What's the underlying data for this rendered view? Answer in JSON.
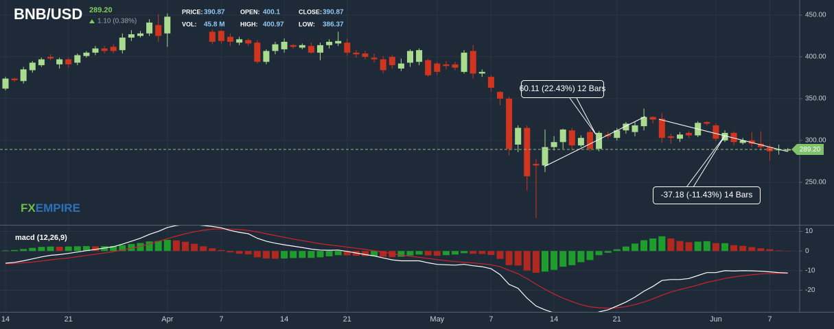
{
  "header": {
    "symbol": "BNB/USD",
    "change": "1.10 (0.38%)",
    "stats": [
      {
        "label": "PRICE:",
        "value": "390.87"
      },
      {
        "label": "VOL:",
        "value": "45.8 M"
      },
      {
        "label": "OPEN:",
        "value": "400.1"
      },
      {
        "label": "HIGH:",
        "value": "400.97"
      },
      {
        "label": "CLOSE:",
        "value": "390.87"
      },
      {
        "label": "LOW:",
        "value": "386.37"
      }
    ]
  },
  "watermark": {
    "prefix": "FX",
    "suffix": "EMPIRE"
  },
  "annotations": [
    "60.11 (22.43%) 12 Bars",
    "-37.18 (-11.43%) 14 Bars"
  ],
  "chart_data": [
    {
      "type": "candlestick",
      "categories": [
        "14",
        null,
        null,
        null,
        null,
        null,
        null,
        "21",
        null,
        null,
        null,
        null,
        null,
        null,
        null,
        null,
        null,
        null,
        "Apr",
        null,
        null,
        null,
        null,
        null,
        "7",
        null,
        null,
        null,
        null,
        null,
        null,
        "14",
        null,
        null,
        null,
        null,
        null,
        null,
        "21",
        null,
        null,
        null,
        null,
        null,
        null,
        null,
        null,
        null,
        "May",
        null,
        null,
        null,
        null,
        null,
        "7",
        null,
        null,
        null,
        null,
        null,
        null,
        "14",
        null,
        null,
        null,
        null,
        null,
        null,
        "21",
        null,
        null,
        null,
        null,
        null,
        null,
        null,
        null,
        null,
        null,
        "Jun",
        null,
        null,
        null,
        null,
        null,
        "7",
        null,
        null
      ],
      "open": [
        362,
        374,
        371,
        384,
        390,
        400,
        391,
        397,
        393,
        401,
        405,
        410,
        412,
        408,
        423,
        425,
        428,
        438,
        428,
        null,
        null,
        null,
        null,
        430,
        431,
        424,
        417,
        420,
        417,
        394,
        407,
        409,
        414,
        411,
        413,
        405,
        414,
        416,
        417,
        405,
        404,
        399,
        397,
        400,
        386,
        393,
        394,
        396,
        392,
        391,
        391,
        382,
        407,
        380,
        376,
        358,
        350,
        295,
        315,
        272,
        270,
        292,
        298,
        312,
        294,
        310,
        290,
        307,
        303,
        312,
        310,
        317,
        328,
        326,
        305,
        302,
        309,
        306,
        322,
        318,
        300,
        309,
        297,
        300,
        296,
        292,
        289,
        288
      ],
      "high": [
        376,
        375,
        388,
        395,
        399,
        403,
        399,
        399,
        404,
        407,
        413,
        413,
        415,
        428,
        432,
        431,
        445,
        451,
        452,
        null,
        null,
        null,
        null,
        433,
        432,
        428,
        424,
        422,
        420,
        409,
        418,
        422,
        415,
        416,
        417,
        417,
        421,
        430,
        422,
        408,
        407,
        404,
        401,
        402,
        398,
        409,
        410,
        398,
        394,
        395,
        394,
        408,
        414,
        385,
        378,
        359,
        352,
        318,
        318,
        278,
        313,
        305,
        314,
        315,
        306,
        313,
        311,
        311,
        315,
        322,
        322,
        338,
        329,
        333,
        308,
        310,
        311,
        323,
        323,
        320,
        312,
        311,
        303,
        310,
        311,
        295,
        295,
        291
      ],
      "low": [
        360,
        370,
        368,
        381,
        388,
        396,
        386,
        387,
        390,
        399,
        402,
        404,
        404,
        404,
        419,
        423,
        425,
        418,
        412,
        null,
        null,
        null,
        null,
        415,
        416,
        413,
        414,
        413,
        392,
        391,
        403,
        405,
        410,
        409,
        404,
        396,
        410,
        413,
        401,
        399,
        397,
        393,
        380,
        386,
        383,
        388,
        390,
        376,
        378,
        385,
        384,
        380,
        374,
        376,
        358,
        342,
        282,
        286,
        240,
        207,
        262,
        288,
        290,
        288,
        292,
        287,
        287,
        302,
        300,
        308,
        305,
        312,
        320,
        297,
        296,
        298,
        303,
        304,
        318,
        299,
        298,
        294,
        295,
        292,
        288,
        276,
        283,
        286
      ],
      "close": [
        374,
        372,
        385,
        393,
        397,
        398,
        397,
        391,
        402,
        405,
        410,
        407,
        407,
        423,
        427,
        428,
        441,
        425,
        448,
        null,
        null,
        null,
        null,
        418,
        419,
        418,
        421,
        416,
        394,
        407,
        415,
        418,
        412,
        414,
        405,
        414,
        418,
        419,
        405,
        403,
        400,
        397,
        384,
        390,
        392,
        407,
        408,
        378,
        382,
        389,
        387,
        405,
        380,
        382,
        363,
        350,
        290,
        315,
        257,
        270,
        292,
        298,
        313,
        294,
        303,
        290,
        309,
        305,
        312,
        320,
        318,
        328,
        325,
        303,
        303,
        307,
        306,
        321,
        320,
        302,
        309,
        298,
        300,
        296,
        292,
        287,
        289,
        289.2
      ],
      "up_color": "#a9dc8e",
      "down_color": "#d0351f",
      "ylim": [
        199,
        468
      ],
      "yticks": [
        {
          "value": 250,
          "label": "250.00"
        },
        {
          "value": 300,
          "label": "300.00"
        },
        {
          "value": 350,
          "label": "350.00"
        },
        {
          "value": 400,
          "label": "400.00"
        },
        {
          "value": 450,
          "label": "450.00"
        }
      ],
      "grid": true,
      "last_price": {
        "value": 289.2,
        "label": "289.20"
      }
    },
    {
      "type": "macd",
      "title": "macd (12,26,9)",
      "macd": {
        "color": "#ffffff",
        "values": [
          -6.2,
          -5.8,
          -5,
          -4,
          -3,
          -2.2,
          -1.8,
          -1.2,
          -0.5,
          0.2,
          0.8,
          1.5,
          2.2,
          3.5,
          5,
          6.5,
          8.5,
          10,
          12,
          13,
          13.5,
          13.5,
          13,
          12.5,
          11.8,
          10.5,
          9.5,
          8.8,
          6.5,
          5,
          4,
          3.2,
          2.5,
          1.8,
          1,
          0.5,
          0.4,
          0.5,
          -0.2,
          -1,
          -1.8,
          -2.5,
          -3.5,
          -4.5,
          -5,
          -5,
          -5,
          -6,
          -6.8,
          -7,
          -7.2,
          -6.8,
          -7.5,
          -8,
          -9,
          -12,
          -17,
          -19,
          -24,
          -28,
          -30,
          -31.5,
          -32,
          -33,
          -33,
          -33,
          -31,
          -30,
          -28,
          -26,
          -23.5,
          -20.5,
          -18,
          -15,
          -14.5,
          -14.5,
          -14,
          -12.5,
          -11,
          -11,
          -10,
          -10.2,
          -10,
          -10.1,
          -10.3,
          -10.6,
          -11,
          -11.2
        ]
      },
      "signal": {
        "color": "#d0242b",
        "values": [
          -6.5,
          -6.3,
          -6,
          -5.6,
          -5.1,
          -4.5,
          -4,
          -3.5,
          -2.9,
          -2.3,
          -1.6,
          -1,
          -0.3,
          0.5,
          1.4,
          2.4,
          3.6,
          4.9,
          6.3,
          7.6,
          8.8,
          9.8,
          10.6,
          11.1,
          11.3,
          11.2,
          10.9,
          10.5,
          9.7,
          8.8,
          7.9,
          7,
          6.1,
          5.3,
          4.5,
          3.7,
          3.1,
          2.6,
          2,
          1.4,
          0.8,
          0.1,
          -0.6,
          -1.4,
          -2.1,
          -2.7,
          -3.2,
          -3.8,
          -4.4,
          -4.9,
          -5.4,
          -5.7,
          -6.1,
          -6.5,
          -7,
          -8,
          -9.8,
          -11.6,
          -14.1,
          -16.9,
          -19.5,
          -21.9,
          -24,
          -25.8,
          -27.3,
          -28.4,
          -28.9,
          -29.1,
          -28.9,
          -28.3,
          -27.3,
          -26,
          -24.4,
          -22.5,
          -20.9,
          -19.6,
          -18.5,
          -17.3,
          -16,
          -15,
          -14,
          -13.2,
          -12.6,
          -12.1,
          -11.7,
          -11.5,
          -11.3,
          -11.3
        ]
      },
      "histogram": {
        "rising_color": "#1f9d2c",
        "falling_color": "#b1281f",
        "values": [
          0.3,
          0.5,
          1,
          1.6,
          2.1,
          2.3,
          2.2,
          2.3,
          2.4,
          2.5,
          2.4,
          2.5,
          2.5,
          3,
          3.6,
          4.1,
          4.9,
          5.1,
          5.7,
          5.4,
          4.7,
          3.7,
          2.4,
          1.4,
          0.5,
          -0.7,
          -1.4,
          -1.7,
          -3.2,
          -3.8,
          -3.9,
          -3.8,
          -3.6,
          -3.5,
          -3.5,
          -3.2,
          -2.7,
          -2.1,
          -2.2,
          -2.4,
          -2.6,
          -2.6,
          -2.9,
          -3.1,
          -2.9,
          -2.3,
          -1.8,
          -2.2,
          -2.4,
          -2.1,
          -1.8,
          -1.1,
          -1.4,
          -1.5,
          -2,
          -4,
          -7.2,
          -7.4,
          -9.9,
          -11.1,
          -10.5,
          -9.6,
          -8,
          -7.2,
          -5.7,
          -4.6,
          -2.1,
          -0.9,
          0.9,
          2.3,
          3.8,
          5.5,
          6.4,
          7.5,
          6.4,
          5.1,
          4.5,
          4.8,
          5,
          4,
          4,
          3,
          2.6,
          2,
          1.4,
          0.9,
          0.3,
          0.1
        ]
      },
      "ylim": [
        -31,
        13
      ],
      "yticks": [
        10,
        0,
        -10,
        -20
      ],
      "grid": true
    }
  ]
}
